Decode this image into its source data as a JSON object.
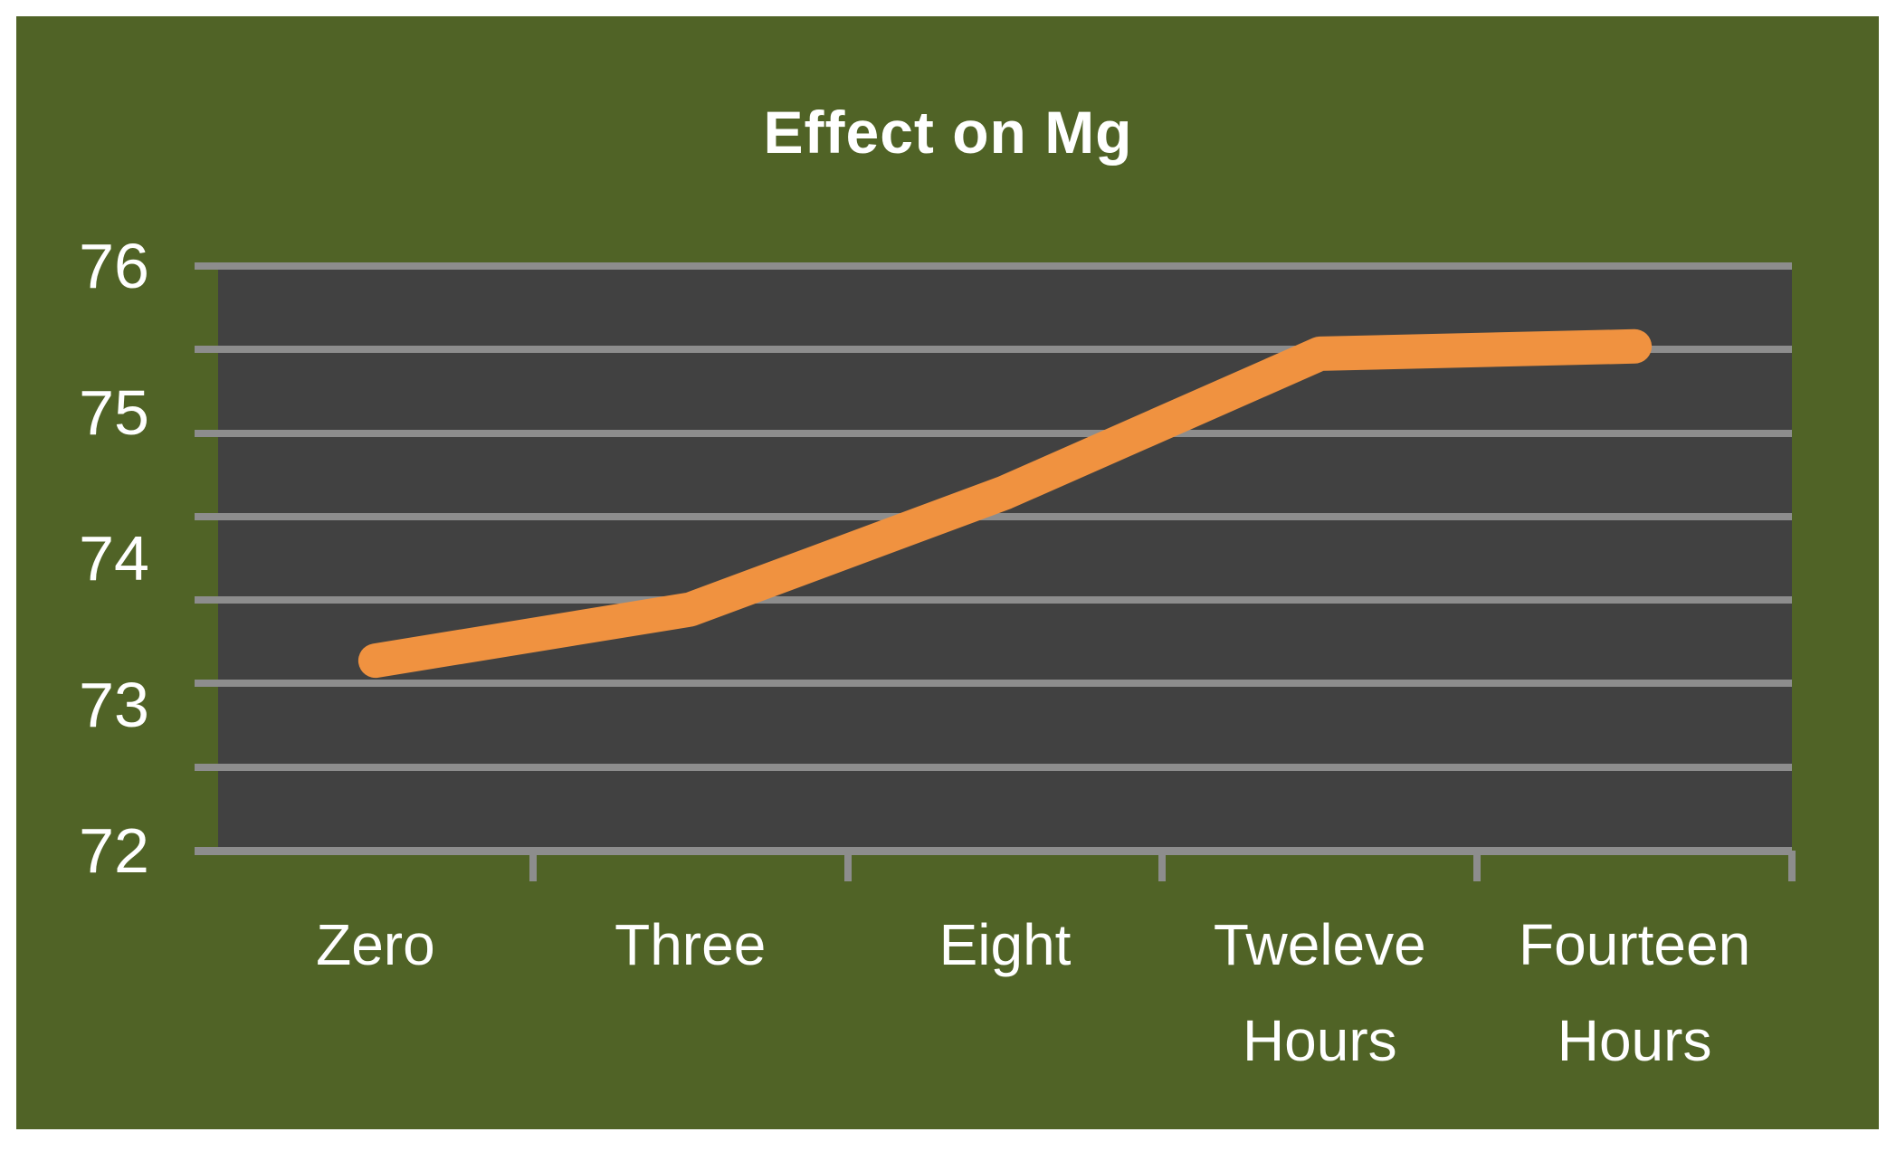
{
  "title": "Effect on Mg",
  "colors": {
    "frame_border": "#ffffff",
    "chart_background": "#506326",
    "plot_background": "#414141",
    "gridline": "#8d8d8d",
    "series_line": "#f09240",
    "text": "#ffffff"
  },
  "chart_data": {
    "type": "line",
    "title": "Effect on Mg",
    "categories": [
      "Zero",
      "Three",
      "Eight",
      "Tweleve Hours",
      "Fourteen Hours"
    ],
    "category_label_lines": [
      [
        "Zero"
      ],
      [
        "Three"
      ],
      [
        "Eight"
      ],
      [
        "Tweleve",
        "Hours"
      ],
      [
        "Fourteen",
        "Hours"
      ]
    ],
    "series": [
      {
        "name": "Mg",
        "values": [
          73.3,
          73.65,
          74.45,
          75.4,
          75.45
        ],
        "color": "#f09240"
      }
    ],
    "xlabel": "",
    "ylabel": "",
    "yticks": [
      "76",
      "75",
      "74",
      "73",
      "72"
    ],
    "ytick_values": [
      76,
      75,
      74,
      73,
      72
    ],
    "ylim": [
      72,
      76
    ],
    "grid": true,
    "horizontal_gridline_count": 8,
    "legend": false
  }
}
